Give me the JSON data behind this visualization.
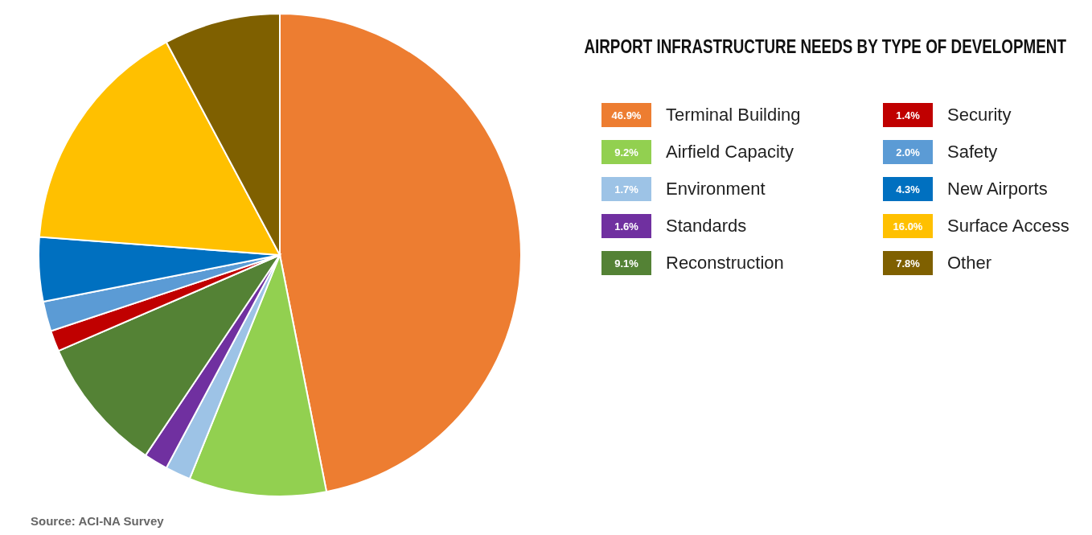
{
  "chart_data": {
    "type": "pie",
    "title": "AIRPORT INFRASTRUCTURE NEEDS BY TYPE OF DEVELOPMENT",
    "categories": [
      "Terminal Building",
      "Airfield Capacity",
      "Environment",
      "Standards",
      "Reconstruction",
      "Security",
      "Safety",
      "New Airports",
      "Surface Access",
      "Other"
    ],
    "values": [
      46.9,
      9.2,
      1.7,
      1.6,
      9.1,
      1.4,
      2.0,
      4.3,
      16.0,
      7.8
    ],
    "value_labels": [
      "46.9%",
      "9.2%",
      "1.7%",
      "1.6%",
      "9.1%",
      "1.4%",
      "2.0%",
      "4.3%",
      "16.0%",
      "7.8%"
    ],
    "colors": [
      "#ed7d31",
      "#92d050",
      "#9dc3e6",
      "#7030a0",
      "#548235",
      "#c00000",
      "#5b9bd5",
      "#0070c0",
      "#ffc000",
      "#7f6000"
    ],
    "legend": "right",
    "annotations": [
      "Source: ACI-NA Survey"
    ]
  }
}
